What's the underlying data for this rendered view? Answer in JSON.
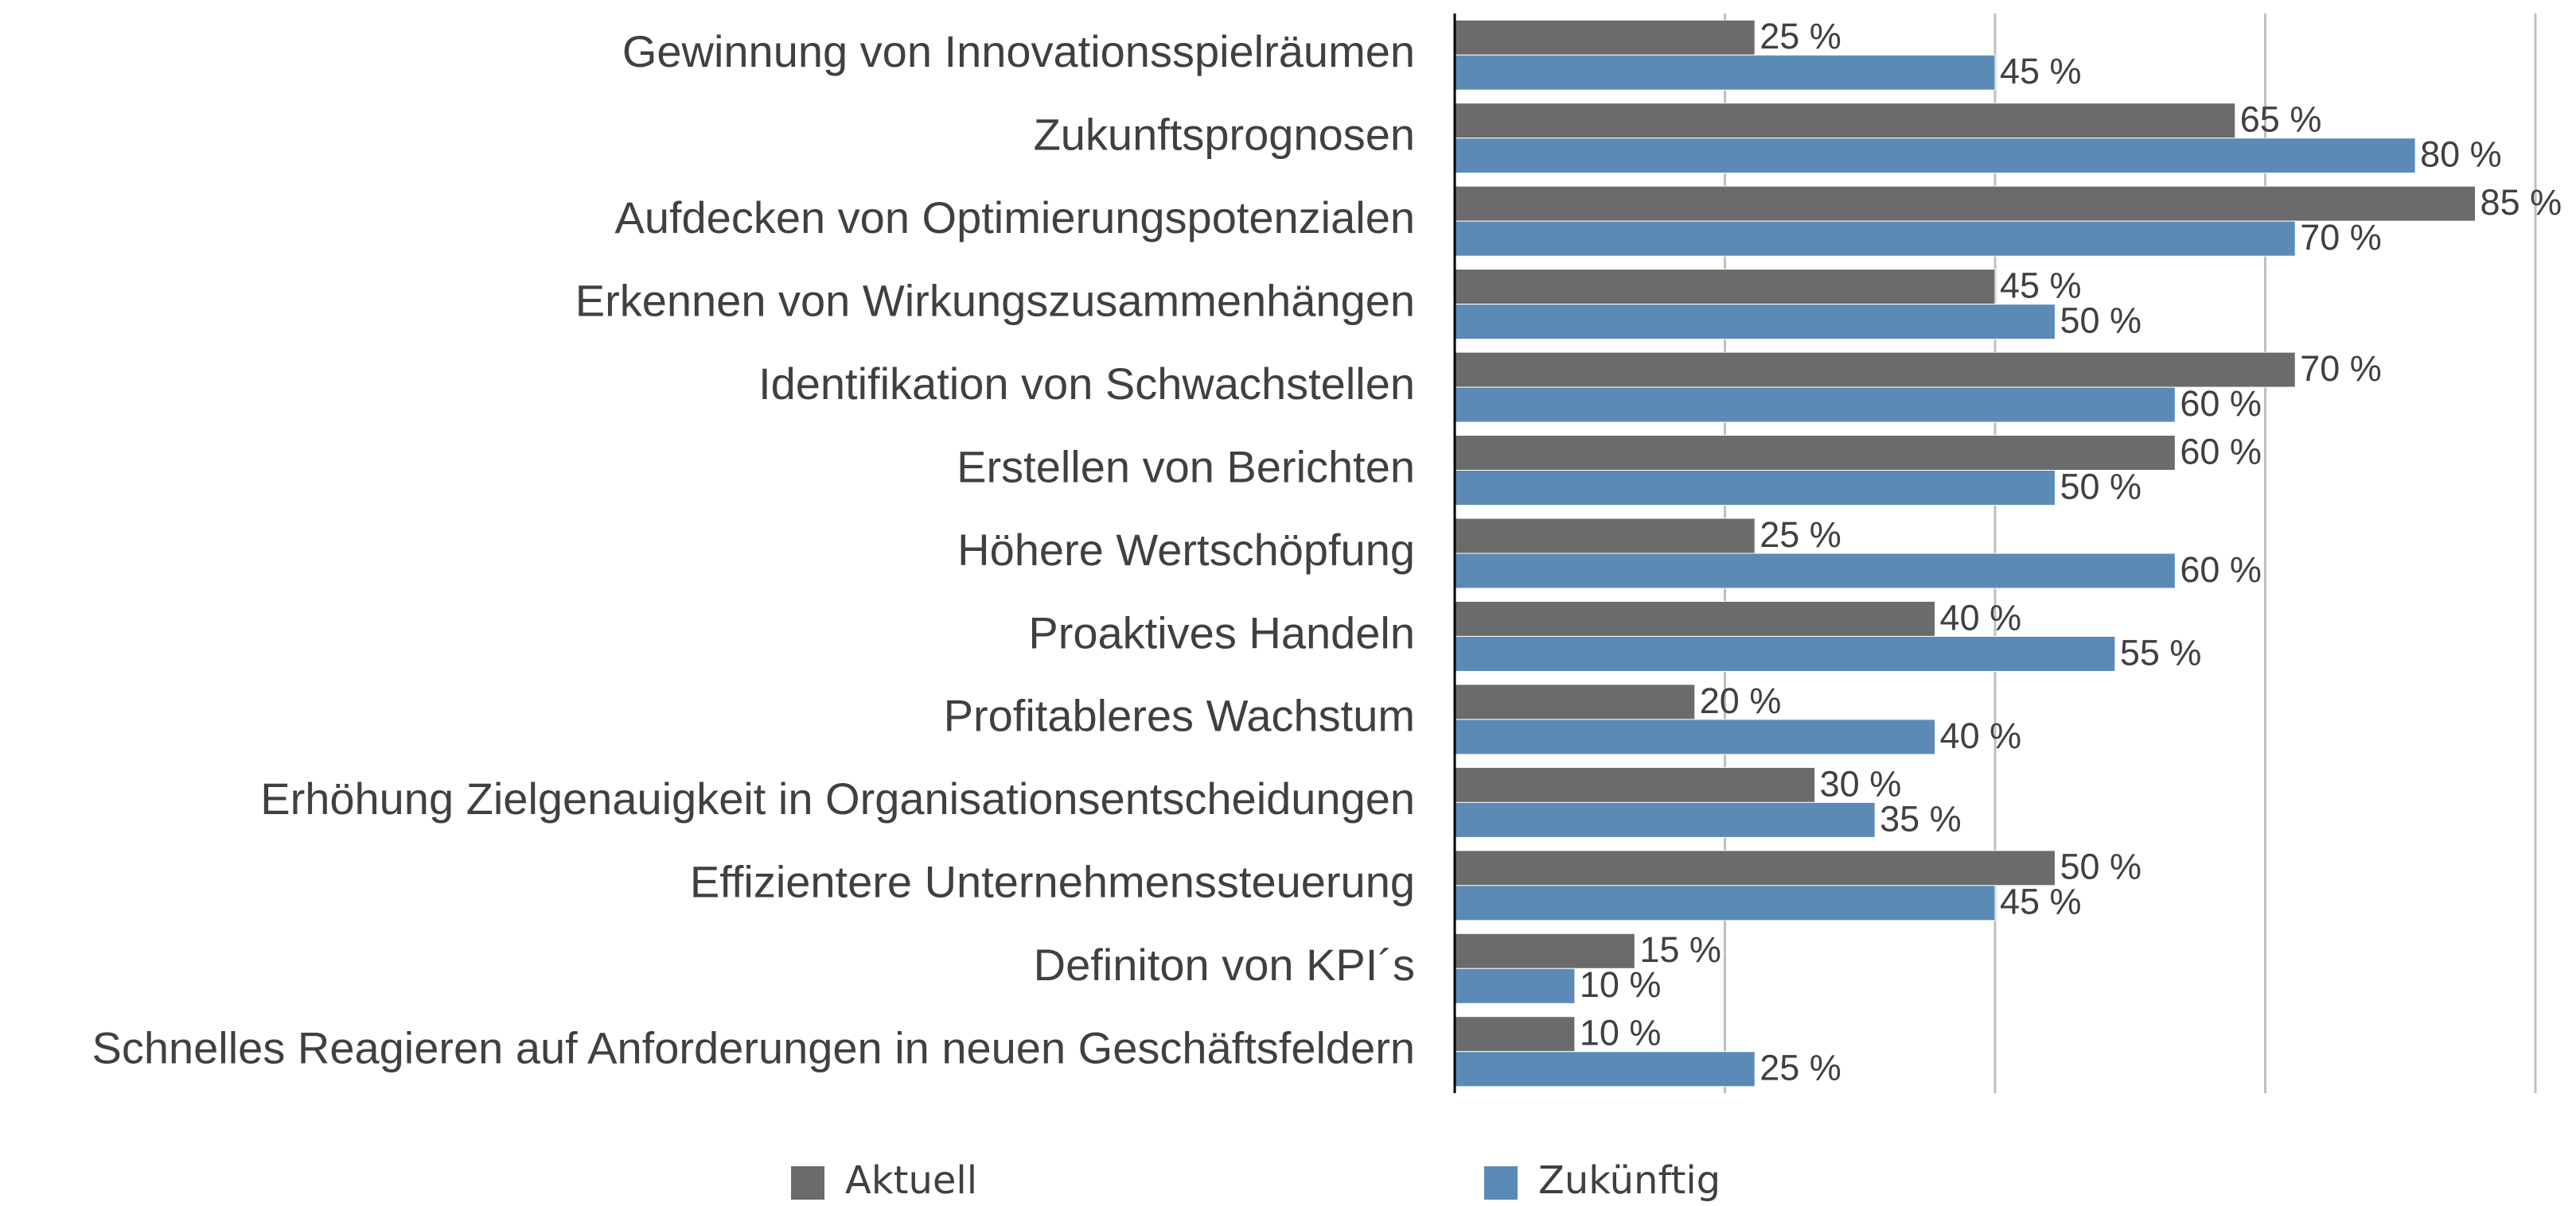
{
  "chart_data": {
    "type": "bar",
    "orientation": "horizontal",
    "categories": [
      "Gewinnung von Innovationsspielräumen",
      "Zukunftsprognosen",
      "Aufdecken von Optimierungspotenzialen",
      "Erkennen von Wirkungszusammenhängen",
      "Identifikation von Schwachstellen",
      "Erstellen von Berichten",
      "Höhere Wertschöpfung",
      "Proaktives Handeln",
      "Profitableres Wachstum",
      "Erhöhung Zielgenauigkeit in Organisationsentscheidungen",
      "Effizientere Unternehmenssteuerung",
      "Definiton von KPI´s",
      "Schnelles Reagieren auf Anforderungen in neuen Geschäftsfeldern"
    ],
    "series": [
      {
        "name": "Aktuell",
        "color": "#6b6b6b",
        "values": [
          25,
          65,
          85,
          45,
          70,
          60,
          25,
          40,
          20,
          30,
          50,
          15,
          10
        ],
        "value_labels": [
          "25 %",
          "65 %",
          "85 %",
          "45 %",
          "70 %",
          "60 %",
          "25 %",
          "40 %",
          "20 %",
          "30 %",
          "50 %",
          "15 %",
          "10 %"
        ]
      },
      {
        "name": "Zukünftig",
        "color": "#5b8ab6",
        "values": [
          45,
          80,
          70,
          50,
          60,
          50,
          60,
          55,
          40,
          35,
          45,
          10,
          25
        ],
        "value_labels": [
          "45 %",
          "80 %",
          "70 %",
          "50 %",
          "60 %",
          "50 %",
          "60 %",
          "55 %",
          "40 %",
          "35 %",
          "45 %",
          "10 %",
          "25 %"
        ]
      }
    ],
    "xlim": [
      0,
      90
    ],
    "xticks": [
      0,
      22.5,
      45,
      67.5,
      90
    ],
    "grid": true,
    "legend": "bottom"
  }
}
